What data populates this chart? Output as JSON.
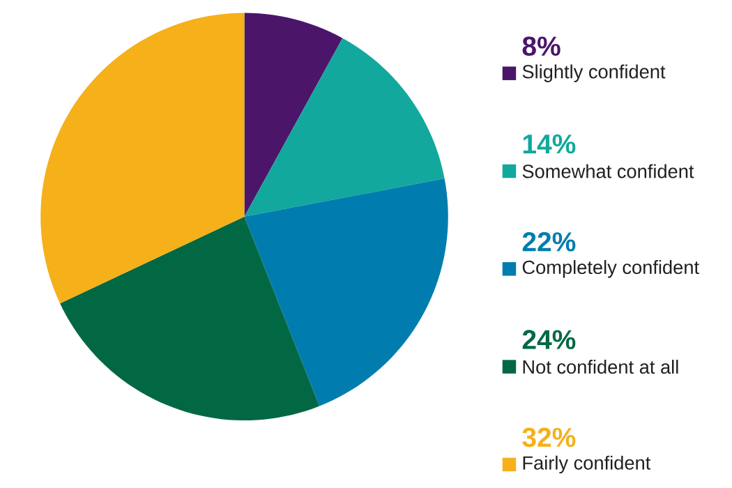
{
  "chart_data": {
    "type": "pie",
    "categories": [
      "Slightly confident",
      "Somewhat confident",
      "Completely confident",
      "Not confident at all",
      "Fairly confident"
    ],
    "values": [
      8,
      14,
      22,
      24,
      32
    ],
    "colors": [
      "#4b166a",
      "#12a89d",
      "#007dae",
      "#026843",
      "#f5b01a"
    ],
    "value_labels": [
      "8%",
      "14%",
      "22%",
      "24%",
      "32%"
    ],
    "legend": "right"
  }
}
